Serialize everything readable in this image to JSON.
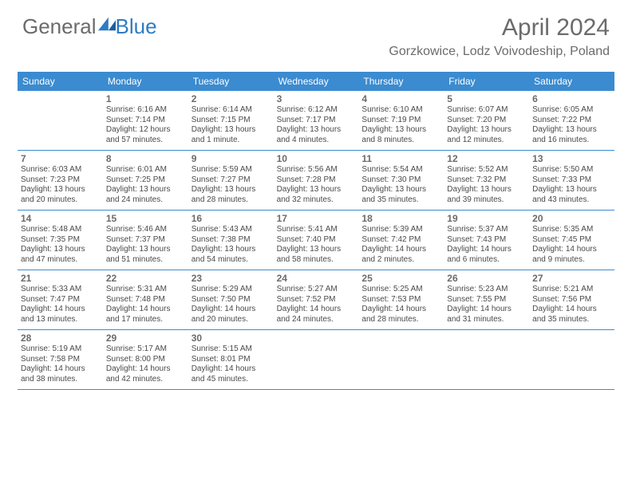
{
  "logo": {
    "word1": "General",
    "word2": "Blue"
  },
  "title": "April 2024",
  "location": "Gorzkowice, Lodz Voivodeship, Poland",
  "colors": {
    "header_bg": "#3b8bd0",
    "header_text": "#ffffff",
    "title_text": "#6b6b6b",
    "body_text": "#4a4a4a",
    "border": "#3b8bd0",
    "logo_gray": "#6b6b6b",
    "logo_blue": "#2e7cc2"
  },
  "typography": {
    "title_fontsize": 30,
    "location_fontsize": 16,
    "logo_fontsize": 26,
    "dow_fontsize": 12,
    "daynum_fontsize": 12,
    "body_fontsize": 10
  },
  "dow": [
    "Sunday",
    "Monday",
    "Tuesday",
    "Wednesday",
    "Thursday",
    "Friday",
    "Saturday"
  ],
  "weeks": [
    [
      null,
      {
        "n": "1",
        "sr": "Sunrise: 6:16 AM",
        "ss": "Sunset: 7:14 PM",
        "d1": "Daylight: 12 hours",
        "d2": "and 57 minutes."
      },
      {
        "n": "2",
        "sr": "Sunrise: 6:14 AM",
        "ss": "Sunset: 7:15 PM",
        "d1": "Daylight: 13 hours",
        "d2": "and 1 minute."
      },
      {
        "n": "3",
        "sr": "Sunrise: 6:12 AM",
        "ss": "Sunset: 7:17 PM",
        "d1": "Daylight: 13 hours",
        "d2": "and 4 minutes."
      },
      {
        "n": "4",
        "sr": "Sunrise: 6:10 AM",
        "ss": "Sunset: 7:19 PM",
        "d1": "Daylight: 13 hours",
        "d2": "and 8 minutes."
      },
      {
        "n": "5",
        "sr": "Sunrise: 6:07 AM",
        "ss": "Sunset: 7:20 PM",
        "d1": "Daylight: 13 hours",
        "d2": "and 12 minutes."
      },
      {
        "n": "6",
        "sr": "Sunrise: 6:05 AM",
        "ss": "Sunset: 7:22 PM",
        "d1": "Daylight: 13 hours",
        "d2": "and 16 minutes."
      }
    ],
    [
      {
        "n": "7",
        "sr": "Sunrise: 6:03 AM",
        "ss": "Sunset: 7:23 PM",
        "d1": "Daylight: 13 hours",
        "d2": "and 20 minutes."
      },
      {
        "n": "8",
        "sr": "Sunrise: 6:01 AM",
        "ss": "Sunset: 7:25 PM",
        "d1": "Daylight: 13 hours",
        "d2": "and 24 minutes."
      },
      {
        "n": "9",
        "sr": "Sunrise: 5:59 AM",
        "ss": "Sunset: 7:27 PM",
        "d1": "Daylight: 13 hours",
        "d2": "and 28 minutes."
      },
      {
        "n": "10",
        "sr": "Sunrise: 5:56 AM",
        "ss": "Sunset: 7:28 PM",
        "d1": "Daylight: 13 hours",
        "d2": "and 32 minutes."
      },
      {
        "n": "11",
        "sr": "Sunrise: 5:54 AM",
        "ss": "Sunset: 7:30 PM",
        "d1": "Daylight: 13 hours",
        "d2": "and 35 minutes."
      },
      {
        "n": "12",
        "sr": "Sunrise: 5:52 AM",
        "ss": "Sunset: 7:32 PM",
        "d1": "Daylight: 13 hours",
        "d2": "and 39 minutes."
      },
      {
        "n": "13",
        "sr": "Sunrise: 5:50 AM",
        "ss": "Sunset: 7:33 PM",
        "d1": "Daylight: 13 hours",
        "d2": "and 43 minutes."
      }
    ],
    [
      {
        "n": "14",
        "sr": "Sunrise: 5:48 AM",
        "ss": "Sunset: 7:35 PM",
        "d1": "Daylight: 13 hours",
        "d2": "and 47 minutes."
      },
      {
        "n": "15",
        "sr": "Sunrise: 5:46 AM",
        "ss": "Sunset: 7:37 PM",
        "d1": "Daylight: 13 hours",
        "d2": "and 51 minutes."
      },
      {
        "n": "16",
        "sr": "Sunrise: 5:43 AM",
        "ss": "Sunset: 7:38 PM",
        "d1": "Daylight: 13 hours",
        "d2": "and 54 minutes."
      },
      {
        "n": "17",
        "sr": "Sunrise: 5:41 AM",
        "ss": "Sunset: 7:40 PM",
        "d1": "Daylight: 13 hours",
        "d2": "and 58 minutes."
      },
      {
        "n": "18",
        "sr": "Sunrise: 5:39 AM",
        "ss": "Sunset: 7:42 PM",
        "d1": "Daylight: 14 hours",
        "d2": "and 2 minutes."
      },
      {
        "n": "19",
        "sr": "Sunrise: 5:37 AM",
        "ss": "Sunset: 7:43 PM",
        "d1": "Daylight: 14 hours",
        "d2": "and 6 minutes."
      },
      {
        "n": "20",
        "sr": "Sunrise: 5:35 AM",
        "ss": "Sunset: 7:45 PM",
        "d1": "Daylight: 14 hours",
        "d2": "and 9 minutes."
      }
    ],
    [
      {
        "n": "21",
        "sr": "Sunrise: 5:33 AM",
        "ss": "Sunset: 7:47 PM",
        "d1": "Daylight: 14 hours",
        "d2": "and 13 minutes."
      },
      {
        "n": "22",
        "sr": "Sunrise: 5:31 AM",
        "ss": "Sunset: 7:48 PM",
        "d1": "Daylight: 14 hours",
        "d2": "and 17 minutes."
      },
      {
        "n": "23",
        "sr": "Sunrise: 5:29 AM",
        "ss": "Sunset: 7:50 PM",
        "d1": "Daylight: 14 hours",
        "d2": "and 20 minutes."
      },
      {
        "n": "24",
        "sr": "Sunrise: 5:27 AM",
        "ss": "Sunset: 7:52 PM",
        "d1": "Daylight: 14 hours",
        "d2": "and 24 minutes."
      },
      {
        "n": "25",
        "sr": "Sunrise: 5:25 AM",
        "ss": "Sunset: 7:53 PM",
        "d1": "Daylight: 14 hours",
        "d2": "and 28 minutes."
      },
      {
        "n": "26",
        "sr": "Sunrise: 5:23 AM",
        "ss": "Sunset: 7:55 PM",
        "d1": "Daylight: 14 hours",
        "d2": "and 31 minutes."
      },
      {
        "n": "27",
        "sr": "Sunrise: 5:21 AM",
        "ss": "Sunset: 7:56 PM",
        "d1": "Daylight: 14 hours",
        "d2": "and 35 minutes."
      }
    ],
    [
      {
        "n": "28",
        "sr": "Sunrise: 5:19 AM",
        "ss": "Sunset: 7:58 PM",
        "d1": "Daylight: 14 hours",
        "d2": "and 38 minutes."
      },
      {
        "n": "29",
        "sr": "Sunrise: 5:17 AM",
        "ss": "Sunset: 8:00 PM",
        "d1": "Daylight: 14 hours",
        "d2": "and 42 minutes."
      },
      {
        "n": "30",
        "sr": "Sunrise: 5:15 AM",
        "ss": "Sunset: 8:01 PM",
        "d1": "Daylight: 14 hours",
        "d2": "and 45 minutes."
      },
      null,
      null,
      null,
      null
    ]
  ]
}
